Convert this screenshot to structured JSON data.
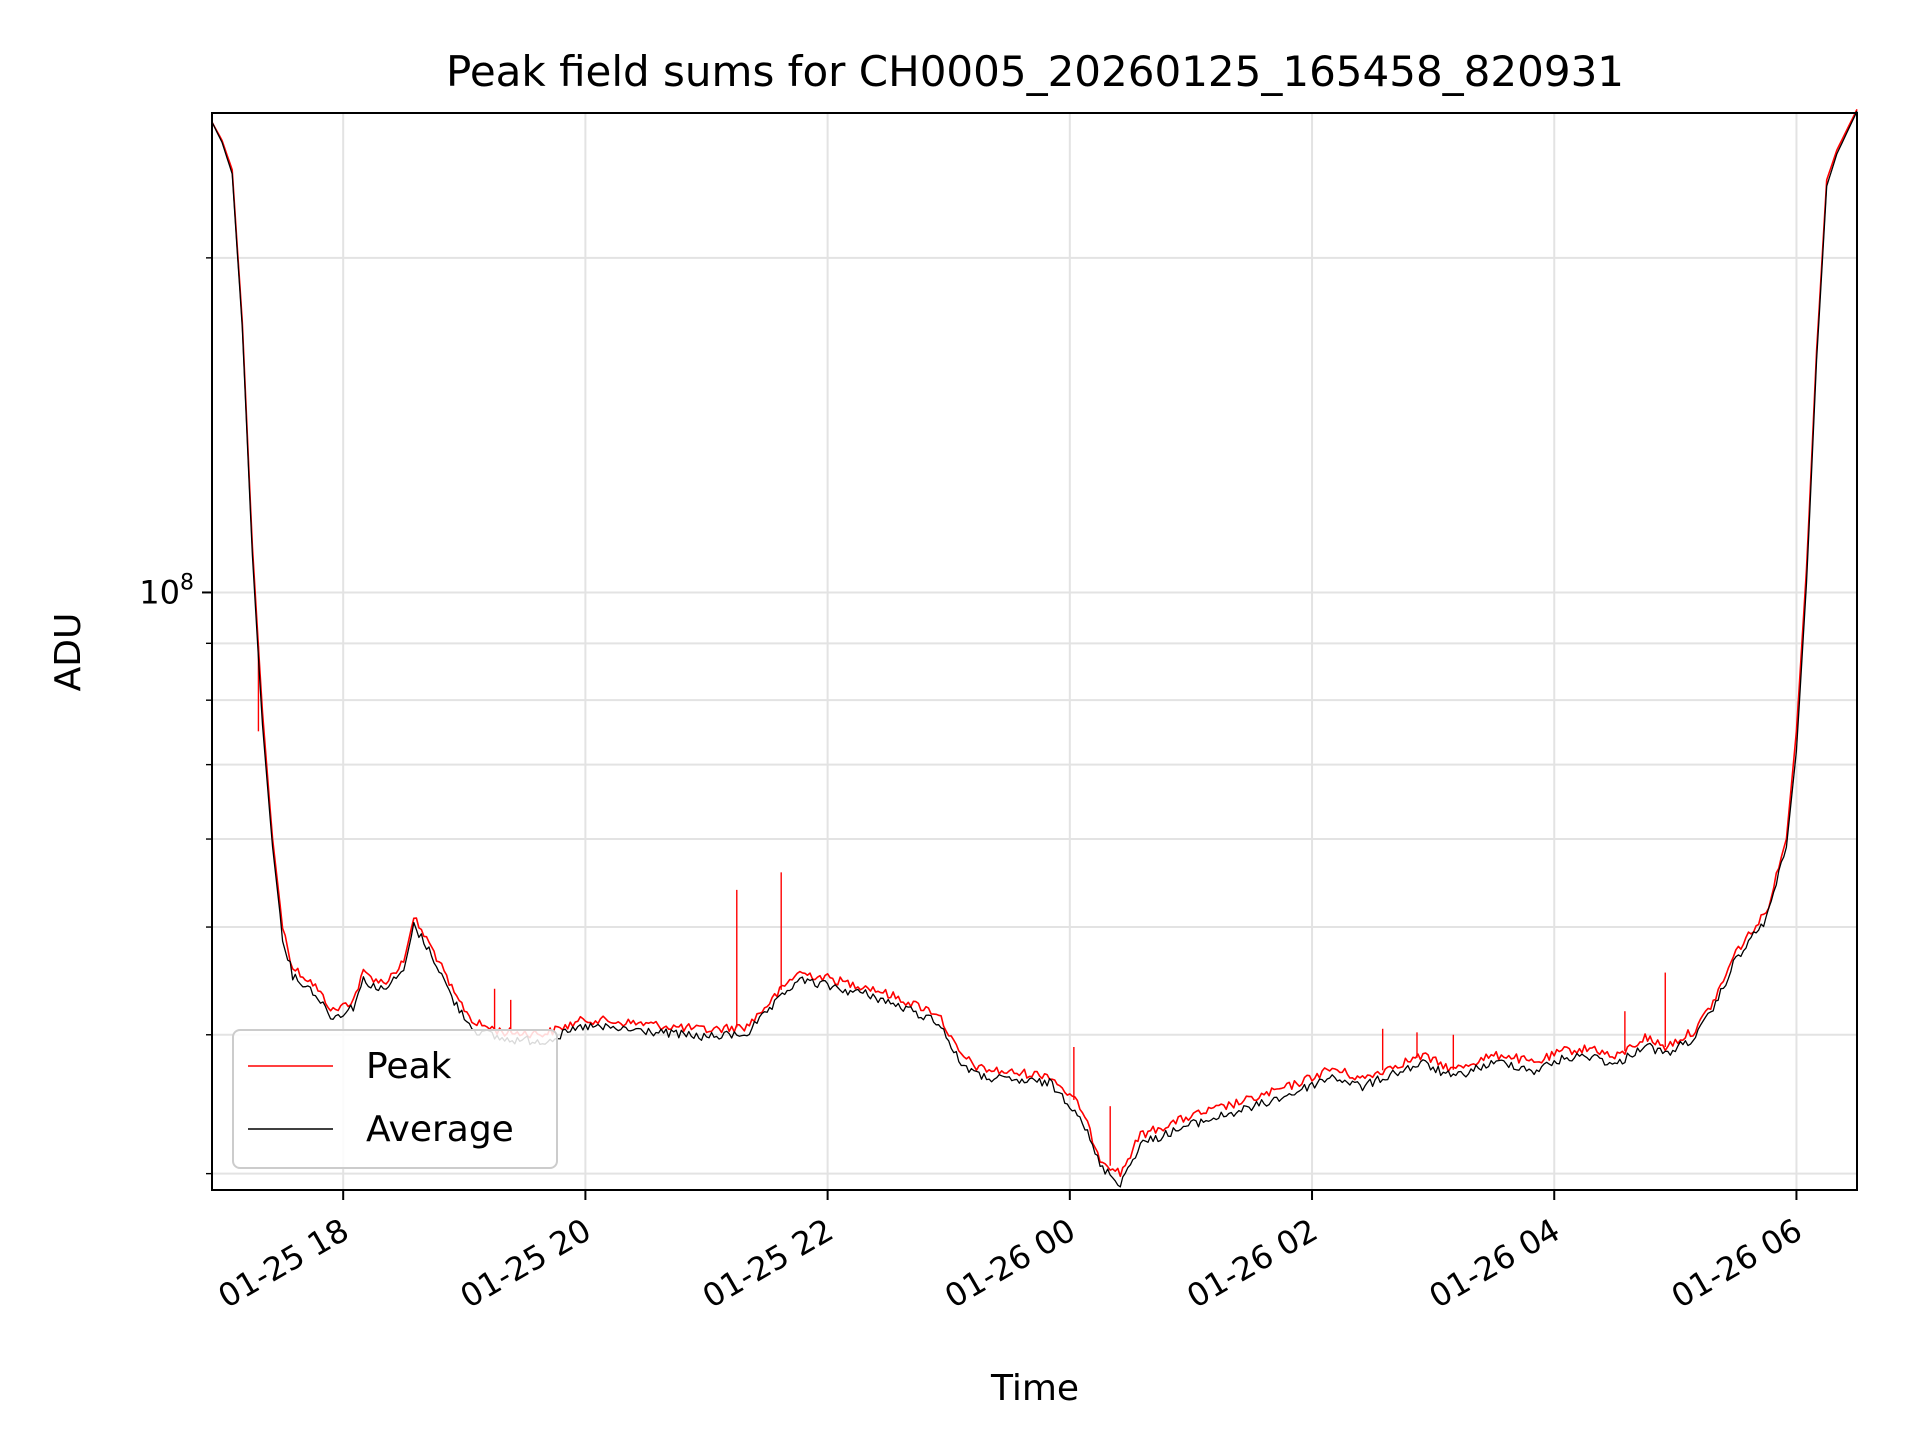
{
  "chart_data": {
    "type": "line",
    "title": "Peak field sums for CH0005_20260125_165458_820931",
    "xlabel": "Time",
    "ylabel": "ADU",
    "yscale": "log",
    "ylim": [
      29000000,
      270000000
    ],
    "xlim": [
      "2026-01-25T16:55",
      "2026-01-26T06:30"
    ],
    "x_tick_labels": [
      "01-25 18",
      "01-25 20",
      "01-25 22",
      "01-26 00",
      "01-26 02",
      "01-26 04",
      "01-26 06"
    ],
    "x_tick_times": [
      "2026-01-25T18:00",
      "2026-01-25T20:00",
      "2026-01-25T22:00",
      "2026-01-26T00:00",
      "2026-01-26T02:00",
      "2026-01-26T04:00",
      "2026-01-26T06:00"
    ],
    "y_tick_major": [
      "10^8"
    ],
    "y_tick_major_values": [
      100000000
    ],
    "grid": true,
    "legend_position": "lower-left",
    "series": [
      {
        "name": "Peak",
        "color": "#ff0000",
        "points": [
          [
            "2026-01-25T16:55",
            265000000
          ],
          [
            "2026-01-25T17:00",
            255000000
          ],
          [
            "2026-01-25T17:05",
            240000000
          ],
          [
            "2026-01-25T17:10",
            175000000
          ],
          [
            "2026-01-25T17:15",
            110000000
          ],
          [
            "2026-01-25T17:20",
            78000000
          ],
          [
            "2026-01-25T17:25",
            60000000
          ],
          [
            "2026-01-25T17:30",
            50000000
          ],
          [
            "2026-01-25T17:35",
            46000000
          ],
          [
            "2026-01-25T17:45",
            44500000
          ],
          [
            "2026-01-25T17:55",
            42000000
          ],
          [
            "2026-01-25T18:05",
            43000000
          ],
          [
            "2026-01-25T18:10",
            45500000
          ],
          [
            "2026-01-25T18:20",
            44500000
          ],
          [
            "2026-01-25T18:30",
            46500000
          ],
          [
            "2026-01-25T18:35",
            51000000
          ],
          [
            "2026-01-25T18:45",
            47500000
          ],
          [
            "2026-01-25T18:55",
            43500000
          ],
          [
            "2026-01-25T19:05",
            41000000
          ],
          [
            "2026-01-25T19:20",
            40200000
          ],
          [
            "2026-01-25T19:40",
            40100000
          ],
          [
            "2026-01-25T19:50",
            40700000
          ],
          [
            "2026-01-25T20:00",
            41300000
          ],
          [
            "2026-01-25T20:30",
            40900000
          ],
          [
            "2026-01-25T21:00",
            40400000
          ],
          [
            "2026-01-25T21:20",
            40700000
          ],
          [
            "2026-01-25T21:35",
            43500000
          ],
          [
            "2026-01-25T21:45",
            45500000
          ],
          [
            "2026-01-25T22:00",
            45000000
          ],
          [
            "2026-01-25T22:10",
            44500000
          ],
          [
            "2026-01-25T22:20",
            44200000
          ],
          [
            "2026-01-25T22:40",
            42800000
          ],
          [
            "2026-01-25T22:55",
            41800000
          ],
          [
            "2026-01-25T23:05",
            38500000
          ],
          [
            "2026-01-25T23:15",
            37300000
          ],
          [
            "2026-01-25T23:30",
            37000000
          ],
          [
            "2026-01-25T23:50",
            36800000
          ],
          [
            "2026-01-26T00:05",
            34500000
          ],
          [
            "2026-01-26T00:15",
            31000000
          ],
          [
            "2026-01-26T00:25",
            30000000
          ],
          [
            "2026-01-26T00:35",
            32500000
          ],
          [
            "2026-01-26T01:00",
            33800000
          ],
          [
            "2026-01-26T01:30",
            35000000
          ],
          [
            "2026-01-26T01:50",
            36000000
          ],
          [
            "2026-01-26T02:10",
            37300000
          ],
          [
            "2026-01-26T02:25",
            36500000
          ],
          [
            "2026-01-26T02:40",
            37500000
          ],
          [
            "2026-01-26T02:55",
            38300000
          ],
          [
            "2026-01-26T03:10",
            37200000
          ],
          [
            "2026-01-26T03:25",
            38100000
          ],
          [
            "2026-01-26T03:35",
            38400000
          ],
          [
            "2026-01-26T03:50",
            37700000
          ],
          [
            "2026-01-26T04:05",
            38700000
          ],
          [
            "2026-01-26T04:20",
            38900000
          ],
          [
            "2026-01-26T04:30",
            38100000
          ],
          [
            "2026-01-26T04:45",
            39800000
          ],
          [
            "2026-01-26T04:55",
            39000000
          ],
          [
            "2026-01-26T05:10",
            40400000
          ],
          [
            "2026-01-26T05:20",
            43200000
          ],
          [
            "2026-01-26T05:30",
            47500000
          ],
          [
            "2026-01-26T05:45",
            51500000
          ],
          [
            "2026-01-26T05:55",
            60000000
          ],
          [
            "2026-01-26T06:00",
            75000000
          ],
          [
            "2026-01-26T06:05",
            105000000
          ],
          [
            "2026-01-26T06:10",
            165000000
          ],
          [
            "2026-01-26T06:15",
            235000000
          ],
          [
            "2026-01-26T06:20",
            250000000
          ],
          [
            "2026-01-26T06:30",
            272000000
          ]
        ],
        "spikes": [
          [
            "2026-01-25T17:18",
            75000000
          ],
          [
            "2026-01-25T19:15",
            44000000
          ],
          [
            "2026-01-25T19:23",
            43000000
          ],
          [
            "2026-01-25T21:15",
            54000000
          ],
          [
            "2026-01-25T21:37",
            56000000
          ],
          [
            "2026-01-26T00:02",
            39000000
          ],
          [
            "2026-01-26T00:20",
            34500000
          ],
          [
            "2026-01-26T02:35",
            40500000
          ],
          [
            "2026-01-26T02:52",
            40200000
          ],
          [
            "2026-01-26T03:10",
            40000000
          ],
          [
            "2026-01-26T04:35",
            42000000
          ],
          [
            "2026-01-26T04:55",
            45500000
          ]
        ]
      },
      {
        "name": "Average",
        "color": "#000000",
        "points": [
          [
            "2026-01-25T16:55",
            265000000
          ],
          [
            "2026-01-25T17:00",
            254000000
          ],
          [
            "2026-01-25T17:05",
            238000000
          ],
          [
            "2026-01-25T17:10",
            173000000
          ],
          [
            "2026-01-25T17:15",
            108000000
          ],
          [
            "2026-01-25T17:20",
            76000000
          ],
          [
            "2026-01-25T17:25",
            59000000
          ],
          [
            "2026-01-25T17:30",
            49000000
          ],
          [
            "2026-01-25T17:35",
            45200000
          ],
          [
            "2026-01-25T17:45",
            43800000
          ],
          [
            "2026-01-25T17:55",
            41400000
          ],
          [
            "2026-01-25T18:05",
            42400000
          ],
          [
            "2026-01-25T18:10",
            44800000
          ],
          [
            "2026-01-25T18:20",
            43800000
          ],
          [
            "2026-01-25T18:30",
            45700000
          ],
          [
            "2026-01-25T18:35",
            50200000
          ],
          [
            "2026-01-25T18:45",
            46800000
          ],
          [
            "2026-01-25T18:55",
            42800000
          ],
          [
            "2026-01-25T19:05",
            40400000
          ],
          [
            "2026-01-25T19:20",
            39600000
          ],
          [
            "2026-01-25T19:40",
            39500000
          ],
          [
            "2026-01-25T19:50",
            40100000
          ],
          [
            "2026-01-25T20:00",
            40700000
          ],
          [
            "2026-01-25T20:30",
            40300000
          ],
          [
            "2026-01-25T21:00",
            39800000
          ],
          [
            "2026-01-25T21:20",
            40100000
          ],
          [
            "2026-01-25T21:35",
            42800000
          ],
          [
            "2026-01-25T21:45",
            44800000
          ],
          [
            "2026-01-25T22:00",
            44300000
          ],
          [
            "2026-01-25T22:10",
            43800000
          ],
          [
            "2026-01-25T22:20",
            43500000
          ],
          [
            "2026-01-25T22:40",
            42100000
          ],
          [
            "2026-01-25T22:55",
            41100000
          ],
          [
            "2026-01-25T23:05",
            37900000
          ],
          [
            "2026-01-25T23:15",
            36700000
          ],
          [
            "2026-01-25T23:30",
            36400000
          ],
          [
            "2026-01-25T23:50",
            36200000
          ],
          [
            "2026-01-26T00:05",
            33900000
          ],
          [
            "2026-01-26T00:15",
            30500000
          ],
          [
            "2026-01-26T00:25",
            29400000
          ],
          [
            "2026-01-26T00:35",
            31900000
          ],
          [
            "2026-01-26T01:00",
            33200000
          ],
          [
            "2026-01-26T01:30",
            34400000
          ],
          [
            "2026-01-26T01:50",
            35400000
          ],
          [
            "2026-01-26T02:10",
            36700000
          ],
          [
            "2026-01-26T02:25",
            35900000
          ],
          [
            "2026-01-26T02:40",
            36900000
          ],
          [
            "2026-01-26T02:55",
            37700000
          ],
          [
            "2026-01-26T03:10",
            36600000
          ],
          [
            "2026-01-26T03:25",
            37500000
          ],
          [
            "2026-01-26T03:35",
            37800000
          ],
          [
            "2026-01-26T03:50",
            37100000
          ],
          [
            "2026-01-26T04:05",
            38100000
          ],
          [
            "2026-01-26T04:20",
            38300000
          ],
          [
            "2026-01-26T04:30",
            37500000
          ],
          [
            "2026-01-26T04:45",
            39200000
          ],
          [
            "2026-01-26T04:55",
            38400000
          ],
          [
            "2026-01-26T05:10",
            39800000
          ],
          [
            "2026-01-26T05:20",
            42600000
          ],
          [
            "2026-01-26T05:30",
            46800000
          ],
          [
            "2026-01-26T05:45",
            50800000
          ],
          [
            "2026-01-26T05:55",
            59000000
          ],
          [
            "2026-01-26T06:00",
            72000000
          ],
          [
            "2026-01-26T06:05",
            102000000
          ],
          [
            "2026-01-26T06:10",
            162000000
          ],
          [
            "2026-01-26T06:15",
            232000000
          ],
          [
            "2026-01-26T06:20",
            248000000
          ],
          [
            "2026-01-26T06:30",
            271000000
          ]
        ],
        "spikes": []
      }
    ]
  }
}
